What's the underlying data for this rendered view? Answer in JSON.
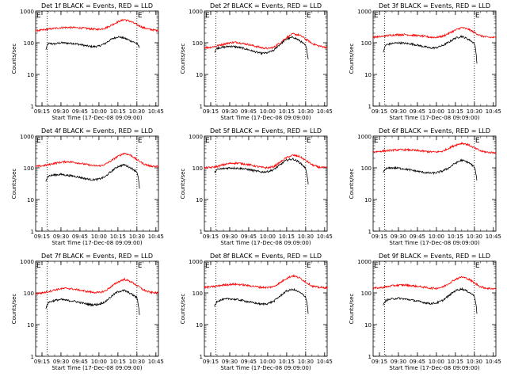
{
  "chart_data": {
    "type": "line",
    "yscale": "log",
    "ylim": [
      1,
      1000
    ],
    "xlim": [
      0,
      97
    ],
    "x_ticks": [
      5,
      20,
      35,
      50,
      65,
      80,
      95
    ],
    "x_tick_labels": [
      "09:15",
      "09:30",
      "09:45",
      "10:00",
      "10:15",
      "10:30",
      "10:45"
    ],
    "y_ticks": [
      1,
      10,
      100,
      1000
    ],
    "y_tick_labels": [
      "1",
      "10",
      "100",
      "1000"
    ],
    "ylabel": "Counts/sec",
    "xlabel": "Start Time (17-Dec-08 09:09:00)",
    "corner_marks": [
      "E",
      "E"
    ],
    "event_line_color": "#000000",
    "lld_line_color": "#ff0000",
    "vline_x": [
      9,
      80
    ],
    "panels": [
      {
        "title": "Det 1f BLACK = Events, RED = LLD",
        "series": [
          {
            "color": "#000000",
            "x": [
              8,
              10,
              15,
              20,
              25,
              30,
              35,
              40,
              45,
              50,
              55,
              60,
              65,
              70,
              75,
              80,
              82
            ],
            "y": [
              60,
              95,
              92,
              100,
              97,
              95,
              88,
              80,
              75,
              78,
              95,
              130,
              155,
              140,
              115,
              95,
              70
            ]
          },
          {
            "color": "#ff0000",
            "x": [
              0,
              5,
              10,
              15,
              20,
              25,
              30,
              35,
              40,
              45,
              50,
              55,
              60,
              65,
              70,
              75,
              80,
              85,
              90,
              97
            ],
            "y": [
              240,
              250,
              270,
              285,
              300,
              305,
              300,
              295,
              285,
              270,
              265,
              290,
              360,
              460,
              540,
              470,
              370,
              300,
              265,
              240
            ]
          }
        ]
      },
      {
        "title": "Det 2f BLACK = Events, RED = LLD",
        "series": [
          {
            "color": "#000000",
            "x": [
              8,
              10,
              15,
              20,
              25,
              30,
              35,
              40,
              45,
              50,
              55,
              60,
              65,
              70,
              75,
              80,
              82
            ],
            "y": [
              50,
              68,
              72,
              78,
              74,
              68,
              60,
              52,
              46,
              48,
              58,
              90,
              130,
              150,
              118,
              80,
              30
            ]
          },
          {
            "color": "#ff0000",
            "x": [
              0,
              5,
              10,
              15,
              20,
              25,
              30,
              35,
              40,
              45,
              50,
              55,
              60,
              65,
              70,
              75,
              80,
              85,
              90,
              97
            ],
            "y": [
              70,
              72,
              80,
              90,
              100,
              104,
              96,
              88,
              78,
              70,
              66,
              72,
              100,
              145,
              190,
              175,
              130,
              95,
              80,
              70
            ]
          }
        ]
      },
      {
        "title": "Det 3f BLACK = Events, RED = LLD",
        "series": [
          {
            "color": "#000000",
            "x": [
              8,
              10,
              15,
              20,
              25,
              30,
              35,
              40,
              45,
              50,
              55,
              60,
              65,
              70,
              75,
              80,
              82
            ],
            "y": [
              50,
              85,
              95,
              100,
              96,
              92,
              84,
              76,
              68,
              70,
              82,
              105,
              140,
              160,
              130,
              95,
              22
            ]
          },
          {
            "color": "#ff0000",
            "x": [
              0,
              5,
              10,
              15,
              20,
              25,
              30,
              35,
              40,
              45,
              50,
              55,
              60,
              65,
              70,
              75,
              80,
              85,
              90,
              97
            ],
            "y": [
              150,
              155,
              165,
              175,
              180,
              182,
              175,
              168,
              160,
              150,
              148,
              160,
              200,
              250,
              300,
              270,
              210,
              165,
              150,
              145
            ]
          }
        ]
      },
      {
        "title": "Det 4f BLACK = Events, RED = LLD",
        "series": [
          {
            "color": "#000000",
            "x": [
              8,
              10,
              15,
              20,
              25,
              30,
              35,
              40,
              45,
              50,
              55,
              60,
              65,
              70,
              75,
              80,
              82
            ],
            "y": [
              40,
              55,
              60,
              62,
              58,
              55,
              50,
              45,
              42,
              44,
              52,
              78,
              110,
              125,
              100,
              75,
              22
            ]
          },
          {
            "color": "#ff0000",
            "x": [
              0,
              5,
              10,
              15,
              20,
              25,
              30,
              35,
              40,
              45,
              50,
              55,
              60,
              65,
              70,
              75,
              80,
              85,
              90,
              97
            ],
            "y": [
              110,
              115,
              125,
              140,
              150,
              158,
              150,
              140,
              128,
              118,
              115,
              128,
              170,
              230,
              290,
              250,
              180,
              135,
              115,
              110
            ]
          }
        ]
      },
      {
        "title": "Det 5f BLACK = Events, RED = LLD",
        "series": [
          {
            "color": "#000000",
            "x": [
              8,
              10,
              15,
              20,
              25,
              30,
              35,
              40,
              45,
              50,
              55,
              60,
              65,
              70,
              75,
              80,
              82
            ],
            "y": [
              70,
              88,
              95,
              100,
              98,
              95,
              88,
              80,
              74,
              76,
              88,
              125,
              175,
              190,
              150,
              95,
              30
            ]
          },
          {
            "color": "#ff0000",
            "x": [
              0,
              5,
              10,
              15,
              20,
              25,
              30,
              35,
              40,
              45,
              50,
              55,
              60,
              65,
              70,
              75,
              80,
              85,
              90,
              97
            ],
            "y": [
              100,
              102,
              110,
              125,
              138,
              142,
              136,
              126,
              114,
              104,
              100,
              110,
              150,
              210,
              250,
              230,
              170,
              125,
              105,
              100
            ]
          }
        ]
      },
      {
        "title": "Det 6f BLACK = Events, RED = LLD",
        "series": [
          {
            "color": "#000000",
            "x": [
              8,
              10,
              15,
              20,
              25,
              30,
              35,
              40,
              45,
              50,
              55,
              60,
              65,
              70,
              75,
              80,
              82
            ],
            "y": [
              70,
              95,
              100,
              98,
              92,
              85,
              78,
              72,
              68,
              70,
              80,
              100,
              140,
              175,
              150,
              105,
              40
            ]
          },
          {
            "color": "#ff0000",
            "x": [
              0,
              5,
              10,
              15,
              20,
              25,
              30,
              35,
              40,
              45,
              50,
              55,
              60,
              65,
              70,
              75,
              80,
              85,
              90,
              97
            ],
            "y": [
              320,
              330,
              345,
              360,
              370,
              372,
              365,
              350,
              335,
              320,
              315,
              335,
              420,
              520,
              600,
              540,
              420,
              340,
              310,
              300
            ]
          }
        ]
      },
      {
        "title": "Det 7f BLACK = Events, RED = LLD",
        "series": [
          {
            "color": "#000000",
            "x": [
              8,
              10,
              15,
              20,
              25,
              30,
              35,
              40,
              45,
              50,
              55,
              60,
              65,
              70,
              75,
              80,
              82
            ],
            "y": [
              30,
              50,
              58,
              62,
              58,
              55,
              50,
              45,
              42,
              44,
              52,
              78,
              110,
              120,
              95,
              70,
              20
            ]
          },
          {
            "color": "#ff0000",
            "x": [
              0,
              5,
              10,
              15,
              20,
              25,
              30,
              35,
              40,
              45,
              50,
              55,
              60,
              65,
              70,
              75,
              80,
              85,
              90,
              97
            ],
            "y": [
              95,
              100,
              110,
              125,
              135,
              140,
              132,
              122,
              112,
              105,
              102,
              115,
              160,
              220,
              270,
              230,
              170,
              125,
              105,
              100
            ]
          }
        ]
      },
      {
        "title": "Det 8f BLACK = Events, RED = LLD",
        "series": [
          {
            "color": "#000000",
            "x": [
              8,
              10,
              15,
              20,
              25,
              30,
              35,
              40,
              45,
              50,
              55,
              60,
              65,
              70,
              75,
              80,
              82
            ],
            "y": [
              38,
              55,
              62,
              66,
              62,
              58,
              52,
              48,
              44,
              46,
              55,
              80,
              115,
              130,
              105,
              75,
              22
            ]
          },
          {
            "color": "#ff0000",
            "x": [
              0,
              5,
              10,
              15,
              20,
              25,
              30,
              35,
              40,
              45,
              50,
              55,
              60,
              65,
              70,
              75,
              80,
              85,
              90,
              97
            ],
            "y": [
              150,
              155,
              165,
              178,
              185,
              188,
              180,
              170,
              160,
              150,
              148,
              160,
              210,
              290,
              350,
              300,
              220,
              165,
              150,
              145
            ]
          }
        ]
      },
      {
        "title": "Det 9f BLACK = Events, RED = LLD",
        "series": [
          {
            "color": "#000000",
            "x": [
              8,
              10,
              15,
              20,
              25,
              30,
              35,
              40,
              45,
              50,
              55,
              60,
              65,
              70,
              75,
              80,
              82
            ],
            "y": [
              40,
              58,
              65,
              68,
              64,
              60,
              55,
              50,
              46,
              48,
              58,
              82,
              118,
              135,
              110,
              80,
              22
            ]
          },
          {
            "color": "#ff0000",
            "x": [
              0,
              5,
              10,
              15,
              20,
              25,
              30,
              35,
              40,
              45,
              50,
              55,
              60,
              65,
              70,
              75,
              80,
              85,
              90,
              97
            ],
            "y": [
              140,
              145,
              155,
              168,
              175,
              178,
              170,
              162,
              152,
              142,
              140,
              152,
              200,
              270,
              320,
              280,
              205,
              155,
              140,
              135
            ]
          }
        ]
      }
    ]
  }
}
